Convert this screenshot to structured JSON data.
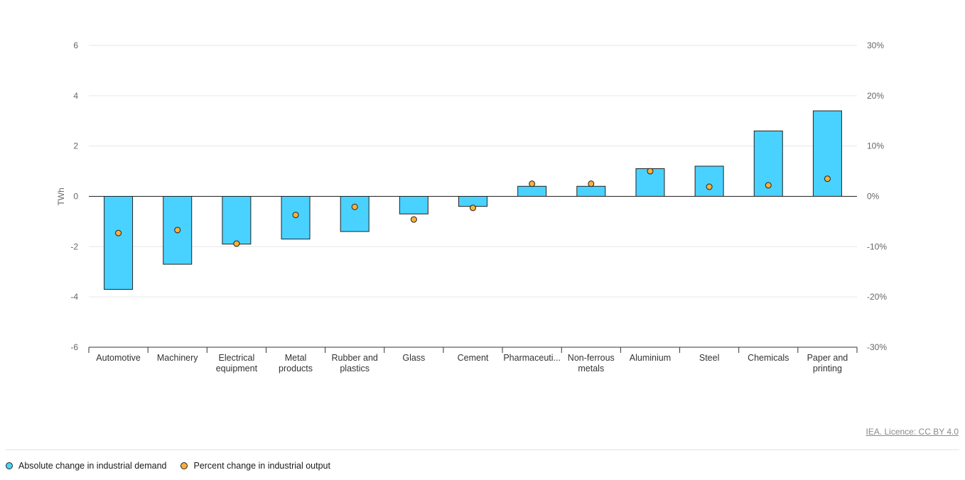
{
  "colors": {
    "bar_fill": "#49d2ff",
    "marker_fill": "#fbb03b",
    "outline": "#222222",
    "grid": "#e6e6e6",
    "axis_text": "#666666"
  },
  "credit": "IEA. Licence: CC BY 4.0",
  "legend": [
    {
      "label": "Absolute change in industrial demand",
      "color": "#49d2ff",
      "icon": "circle"
    },
    {
      "label": "Percent change in industrial output",
      "color": "#fbb03b",
      "icon": "circle"
    }
  ],
  "chart_data": {
    "type": "bar",
    "title": "",
    "xlabel": "",
    "ylabel": "TWh",
    "ylim": [
      -6,
      6
    ],
    "yticks": [
      6,
      4,
      2,
      0,
      -2,
      -4,
      -6
    ],
    "y2lim": [
      -30,
      30
    ],
    "y2ticks": [
      "30%",
      "20%",
      "10%",
      "0%",
      "-10%",
      "-20%",
      "-30%"
    ],
    "y2tick_values": [
      30,
      20,
      10,
      0,
      -10,
      -20,
      -30
    ],
    "grid": true,
    "legend_position": "bottom-left",
    "categories": [
      [
        "Automotive"
      ],
      [
        "Machinery"
      ],
      [
        "Electrical",
        "equipment"
      ],
      [
        "Metal",
        "products"
      ],
      [
        "Rubber and",
        "plastics"
      ],
      [
        "Glass"
      ],
      [
        "Cement"
      ],
      [
        "Pharmaceuti..."
      ],
      [
        "Non-ferrous",
        "metals"
      ],
      [
        "Aluminium"
      ],
      [
        "Steel"
      ],
      [
        "Chemicals"
      ],
      [
        "Paper and",
        "printing"
      ]
    ],
    "series": [
      {
        "name": "Absolute change in industrial demand",
        "kind": "bar",
        "axis": "left",
        "values": [
          -3.7,
          -2.7,
          -1.9,
          -1.7,
          -1.4,
          -0.7,
          -0.4,
          0.4,
          0.4,
          1.1,
          1.2,
          2.6,
          3.4
        ]
      },
      {
        "name": "Percent change in industrial output",
        "kind": "marker",
        "axis": "right",
        "values": [
          -7.3,
          -6.7,
          -9.4,
          -3.7,
          -2.1,
          -4.6,
          -2.3,
          2.5,
          2.5,
          5.0,
          1.9,
          2.2,
          3.5
        ]
      }
    ]
  }
}
